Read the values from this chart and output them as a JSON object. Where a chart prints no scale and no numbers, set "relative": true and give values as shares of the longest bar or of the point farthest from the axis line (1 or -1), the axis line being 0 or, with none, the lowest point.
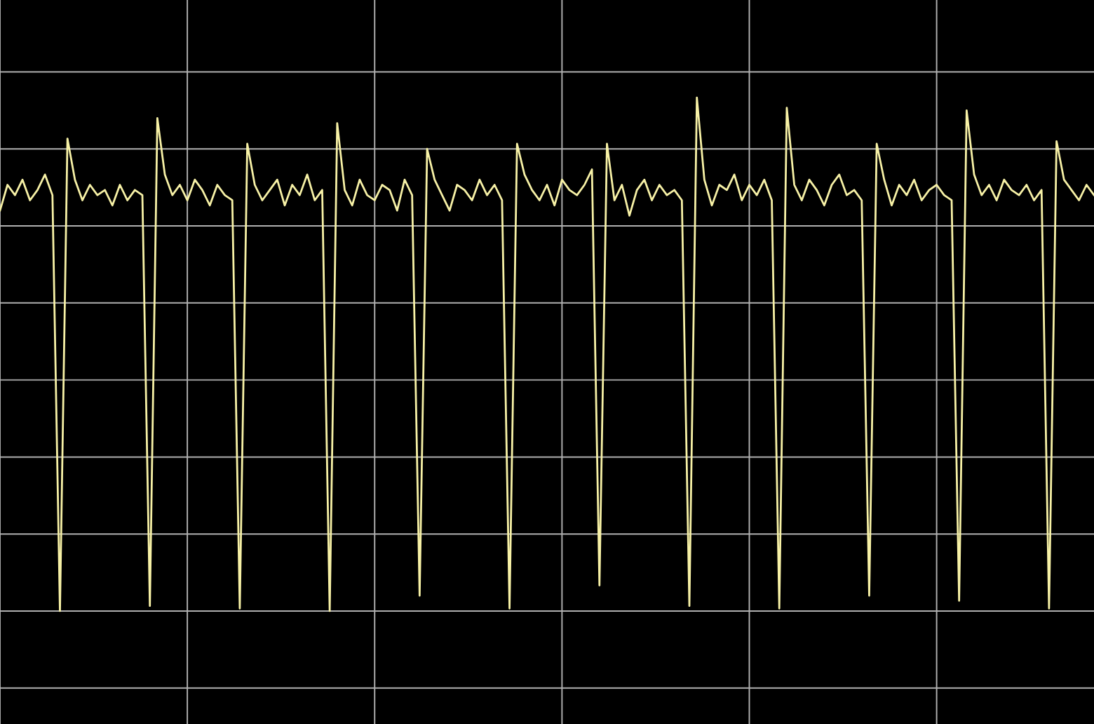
{
  "chart_data": {
    "type": "line",
    "relative": true,
    "grid": true,
    "marker": "none",
    "line_style": "solid",
    "categories": [
      null,
      null,
      null,
      null,
      null,
      null,
      null,
      null,
      null,
      null,
      null,
      null,
      null,
      null,
      null,
      null,
      null,
      null,
      null,
      null,
      null,
      null,
      null,
      null,
      null,
      null,
      null,
      null,
      null,
      null,
      null,
      null,
      null,
      null,
      null,
      null,
      null,
      null,
      null,
      null,
      null,
      null,
      null,
      null,
      null,
      null,
      null,
      null,
      null,
      null,
      null,
      null,
      null,
      null,
      null,
      null,
      null,
      null,
      null,
      null,
      null,
      null,
      null,
      null,
      null,
      null,
      null,
      null,
      null,
      null,
      null,
      null,
      null,
      null,
      null,
      null,
      null,
      null,
      null,
      null,
      null,
      null,
      null,
      null,
      null,
      null,
      null,
      null,
      null,
      null,
      null,
      null,
      null,
      null,
      null,
      null,
      null,
      null,
      null,
      null,
      null,
      null,
      null,
      null,
      null,
      null,
      null,
      null,
      null,
      null,
      null,
      null,
      null,
      null,
      null,
      null,
      null,
      null,
      null,
      null,
      null,
      null,
      null,
      null,
      null,
      null,
      null,
      null,
      null,
      null,
      null,
      null,
      null,
      null,
      null,
      null,
      null,
      null,
      null,
      null,
      null,
      null,
      null,
      null,
      null,
      null,
      null
    ],
    "series": [
      {
        "color": "#f7f1a6",
        "values": [
          0.78,
          0.83,
          0.81,
          0.84,
          0.8,
          0.82,
          0.85,
          0.81,
          0,
          0.92,
          0.84,
          0.8,
          0.83,
          0.81,
          0.82,
          0.79,
          0.83,
          0.8,
          0.82,
          0.81,
          0.01,
          0.96,
          0.85,
          0.81,
          0.83,
          0.8,
          0.84,
          0.82,
          0.79,
          0.83,
          0.81,
          0.8,
          0.005,
          0.91,
          0.83,
          0.8,
          0.82,
          0.84,
          0.79,
          0.83,
          0.81,
          0.85,
          0.8,
          0.82,
          0,
          0.95,
          0.82,
          0.79,
          0.84,
          0.81,
          0.8,
          0.83,
          0.82,
          0.78,
          0.84,
          0.81,
          0.03,
          0.9,
          0.84,
          0.81,
          0.78,
          0.83,
          0.82,
          0.8,
          0.84,
          0.81,
          0.83,
          0.8,
          0.005,
          0.91,
          0.85,
          0.82,
          0.8,
          0.83,
          0.79,
          0.84,
          0.82,
          0.81,
          0.83,
          0.86,
          0.05,
          0.91,
          0.8,
          0.83,
          0.77,
          0.82,
          0.84,
          0.8,
          0.83,
          0.81,
          0.82,
          0.8,
          0.01,
          1.0,
          0.84,
          0.79,
          0.83,
          0.82,
          0.85,
          0.8,
          0.83,
          0.81,
          0.84,
          0.8,
          0.005,
          0.98,
          0.83,
          0.8,
          0.84,
          0.82,
          0.79,
          0.83,
          0.85,
          0.81,
          0.82,
          0.8,
          0.03,
          0.91,
          0.84,
          0.79,
          0.83,
          0.81,
          0.84,
          0.8,
          0.82,
          0.83,
          0.81,
          0.8,
          0.02,
          0.975,
          0.85,
          0.81,
          0.83,
          0.8,
          0.84,
          0.82,
          0.81,
          0.83,
          0.8,
          0.82,
          0.005,
          0.915,
          0.84,
          0.82,
          0.8,
          0.83,
          0.81
        ]
      }
    ]
  }
}
